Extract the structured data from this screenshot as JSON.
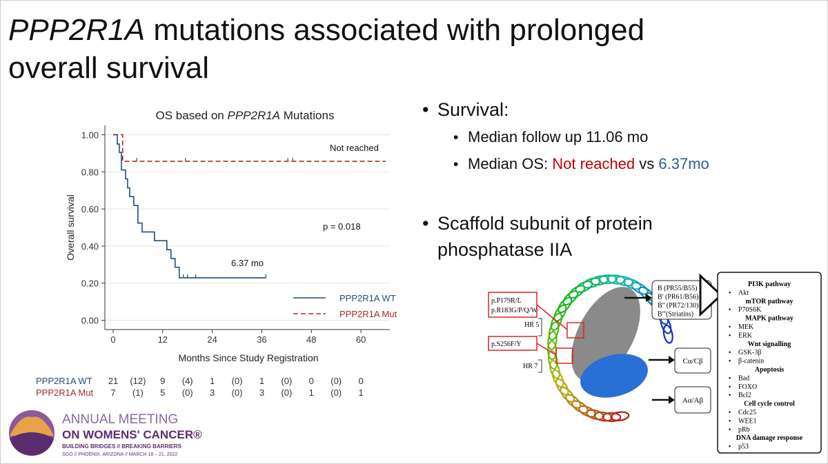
{
  "heading": [
    "PPP2R1A",
    " mutations associated with prolonged",
    "overall survival"
  ],
  "bullets": {
    "survival": "Survival:",
    "follow_up": "Median follow up 11.06 mo",
    "median_os": [
      "Median OS: ",
      "Not reached",
      " vs ",
      "6.37mo"
    ],
    "scaffold": [
      "Scaffold subunit of protein",
      "phosphatase IIA"
    ]
  },
  "chart_data": {
    "type": "km",
    "title_parts": [
      "OS based on ",
      "PPP2R1A",
      " Mutations"
    ],
    "xlabel": "Months Since Study Registration",
    "ylabel": "Overall survival",
    "xlim": [
      -2,
      67
    ],
    "ylim": [
      -0.05,
      1.05
    ],
    "xticks": [
      0,
      12,
      24,
      36,
      48,
      60
    ],
    "yticks": [
      {
        "value": 0,
        "label": "0.00"
      },
      {
        "value": 0.2,
        "label": "0.20"
      },
      {
        "value": 0.4,
        "label": "0.40"
      },
      {
        "value": 0.6,
        "label": "0.60"
      },
      {
        "value": 0.8,
        "label": "0.80"
      },
      {
        "value": 1,
        "label": "1.00"
      }
    ],
    "grid": true,
    "legend": "lower right",
    "series": [
      {
        "name": "PPP2R1A WT",
        "color": "#1f4e79",
        "dashed": false,
        "x": [
          0,
          1,
          1.5,
          2,
          3,
          3.5,
          4,
          5,
          6,
          7,
          10,
          13,
          14,
          15,
          16,
          37
        ],
        "values": [
          1,
          0.95,
          0.905,
          0.81,
          0.762,
          0.714,
          0.667,
          0.619,
          0.524,
          0.476,
          0.429,
          0.381,
          0.333,
          0.286,
          0.229,
          0.229
        ],
        "censor_x": [
          17,
          18,
          20,
          37
        ],
        "censor_values": [
          0.229,
          0.229,
          0.229,
          0.229
        ]
      },
      {
        "name": "PPP2R1A Mut",
        "color": "#a52a2a",
        "dashed": true,
        "x": [
          0,
          2.3,
          66
        ],
        "values": [
          1,
          0.857,
          0.857
        ],
        "censor_x": [
          5.7,
          17.5,
          42.3,
          43.5
        ],
        "censor_values": [
          0.857,
          0.857,
          0.857,
          0.857
        ]
      }
    ],
    "annotations": [
      "Not reached",
      "p = 0.018",
      "6.37 mo"
    ]
  },
  "risk_table": {
    "rows": [
      {
        "label": "PPP2R1A WT",
        "values": [
          "21",
          "(12)",
          "9",
          "(4)",
          "1",
          "(0)",
          "1",
          "(0)",
          "0",
          "(0)",
          "0"
        ]
      },
      {
        "label": "PPP2R1A Mut",
        "values": [
          "7",
          "(1)",
          "5",
          "(0)",
          "3",
          "(0)",
          "3",
          "(0)",
          "1",
          "(0)",
          "1"
        ]
      }
    ]
  },
  "diagram": {
    "mutations_1": [
      "p.P179R/L",
      "p.R183G/P/Q/W"
    ],
    "hr5": "HR 5",
    "mutations_2": "p.S256F/Y",
    "hr7": "HR 7",
    "b_subunits": [
      "B (PR55/B55)",
      "B' (PR61/B56)",
      "B'' (PR72/130)",
      "B'''(Striatins)"
    ],
    "c_subunit": "Cα/Cβ",
    "a_subunit": "Aα/Aβ",
    "pathways": [
      {
        "header": "PI3K pathway",
        "items": [
          "Akt"
        ]
      },
      {
        "header": "mTOR pathway",
        "items": [
          "P70S6K"
        ]
      },
      {
        "header": "MAPK pathway",
        "items": [
          "MEK",
          "ERK"
        ]
      },
      {
        "header": "Wnt signalling",
        "items": [
          "GSK-3β",
          "β-catenin"
        ]
      },
      {
        "header": "Apoptosis",
        "items": [
          "Bad",
          "FOXO",
          "Bcl2"
        ]
      },
      {
        "header": "Cell cycle control",
        "items": [
          "Cdc25",
          "WEE1",
          "pRb"
        ]
      },
      {
        "header": "DNA damage response",
        "items": [
          "p53"
        ]
      }
    ]
  },
  "logo": [
    "ANNUAL MEETING",
    "ON WOMENS' CANCER®",
    "BUILDING BRIDGES // BREAKING BARRIERS",
    "SGO // PHOENIX, ARIZONA // MARCH 18 – 21, 2022"
  ]
}
